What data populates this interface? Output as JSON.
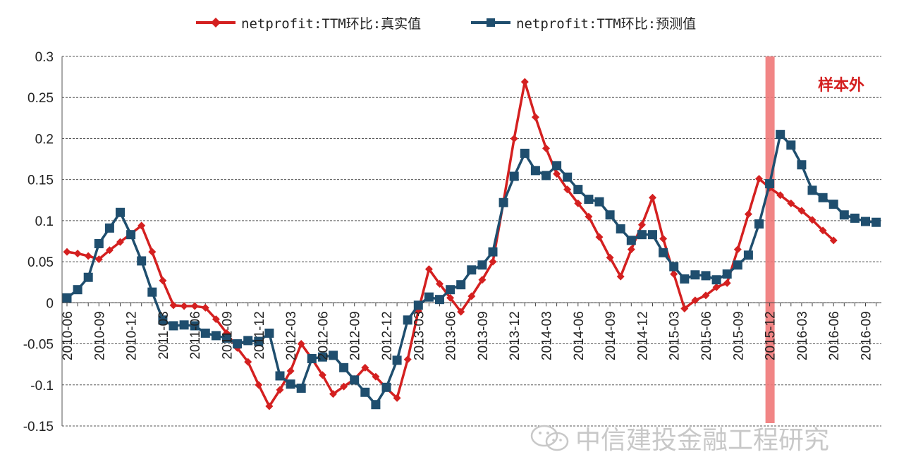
{
  "chart_data": {
    "type": "line",
    "legend": [
      "netprofit:TTM环比:真实值",
      "netprofit:TTM环比:预测值"
    ],
    "annotation": "样本外",
    "ylim": [
      -0.15,
      0.3
    ],
    "yticks": [
      "0.3",
      "0.25",
      "0.2",
      "0.15",
      "0.1",
      "0.05",
      "0",
      "-0.05",
      "-0.1",
      "-0.15"
    ],
    "xtick_labels": [
      "2010-06",
      "2010-09",
      "2010-12",
      "2011-03",
      "2011-06",
      "2011-09",
      "2011-12",
      "2012-03",
      "2012-06",
      "2012-09",
      "2012-12",
      "2013-03",
      "2013-06",
      "2013-09",
      "2013-12",
      "2014-03",
      "2014-06",
      "2014-09",
      "2014-12",
      "2015-03",
      "2015-06",
      "2015-09",
      "2015-12",
      "2016-03",
      "2016-06",
      "2016-09"
    ],
    "highlight_month": "2015-12",
    "series": [
      {
        "name": "netprofit:TTM环比:真实值",
        "color": "#d42020",
        "marker": "diamond",
        "values": [
          0.062,
          0.06,
          0.057,
          0.053,
          0.064,
          0.074,
          0.084,
          0.094,
          0.062,
          0.027,
          -0.003,
          -0.004,
          -0.004,
          -0.006,
          -0.02,
          -0.037,
          -0.055,
          -0.072,
          -0.1,
          -0.126,
          -0.106,
          -0.083,
          -0.05,
          -0.068,
          -0.088,
          -0.111,
          -0.102,
          -0.093,
          -0.079,
          -0.09,
          -0.104,
          -0.116,
          -0.069,
          -0.01,
          0.041,
          0.023,
          0.006,
          -0.011,
          0.008,
          0.028,
          0.05,
          0.123,
          0.2,
          0.269,
          0.226,
          0.188,
          0.157,
          0.138,
          0.121,
          0.105,
          0.08,
          0.055,
          0.032,
          0.065,
          0.095,
          0.128,
          0.078,
          0.035,
          -0.007,
          0.003,
          0.009,
          0.019,
          0.024,
          0.065,
          0.108,
          0.151,
          0.14,
          0.131,
          0.121,
          0.112,
          0.101,
          0.088,
          0.076
        ]
      },
      {
        "name": "netprofit:TTM环比:预测值",
        "color": "#1f4e6e",
        "marker": "square",
        "values": [
          0.006,
          0.016,
          0.031,
          0.072,
          0.091,
          0.11,
          0.083,
          0.051,
          0.013,
          -0.021,
          -0.028,
          -0.027,
          -0.028,
          -0.037,
          -0.04,
          -0.043,
          -0.05,
          -0.046,
          -0.047,
          -0.037,
          -0.089,
          -0.099,
          -0.104,
          -0.068,
          -0.066,
          -0.064,
          -0.079,
          -0.094,
          -0.109,
          -0.124,
          -0.103,
          -0.07,
          -0.021,
          -0.003,
          0.007,
          0.004,
          0.016,
          0.022,
          0.04,
          0.046,
          0.062,
          0.122,
          0.154,
          0.182,
          0.161,
          0.155,
          0.167,
          0.153,
          0.138,
          0.126,
          0.123,
          0.107,
          0.09,
          0.076,
          0.083,
          0.083,
          0.061,
          0.044,
          0.029,
          0.034,
          0.033,
          0.028,
          0.035,
          0.046,
          0.058,
          0.096,
          0.145,
          0.205,
          0.192,
          0.168,
          0.137,
          0.128,
          0.12,
          0.107,
          0.103,
          0.099,
          0.098
        ]
      }
    ]
  },
  "watermark": {
    "text": "中信建投金融工程研究",
    "icon": "wechat-icon"
  }
}
